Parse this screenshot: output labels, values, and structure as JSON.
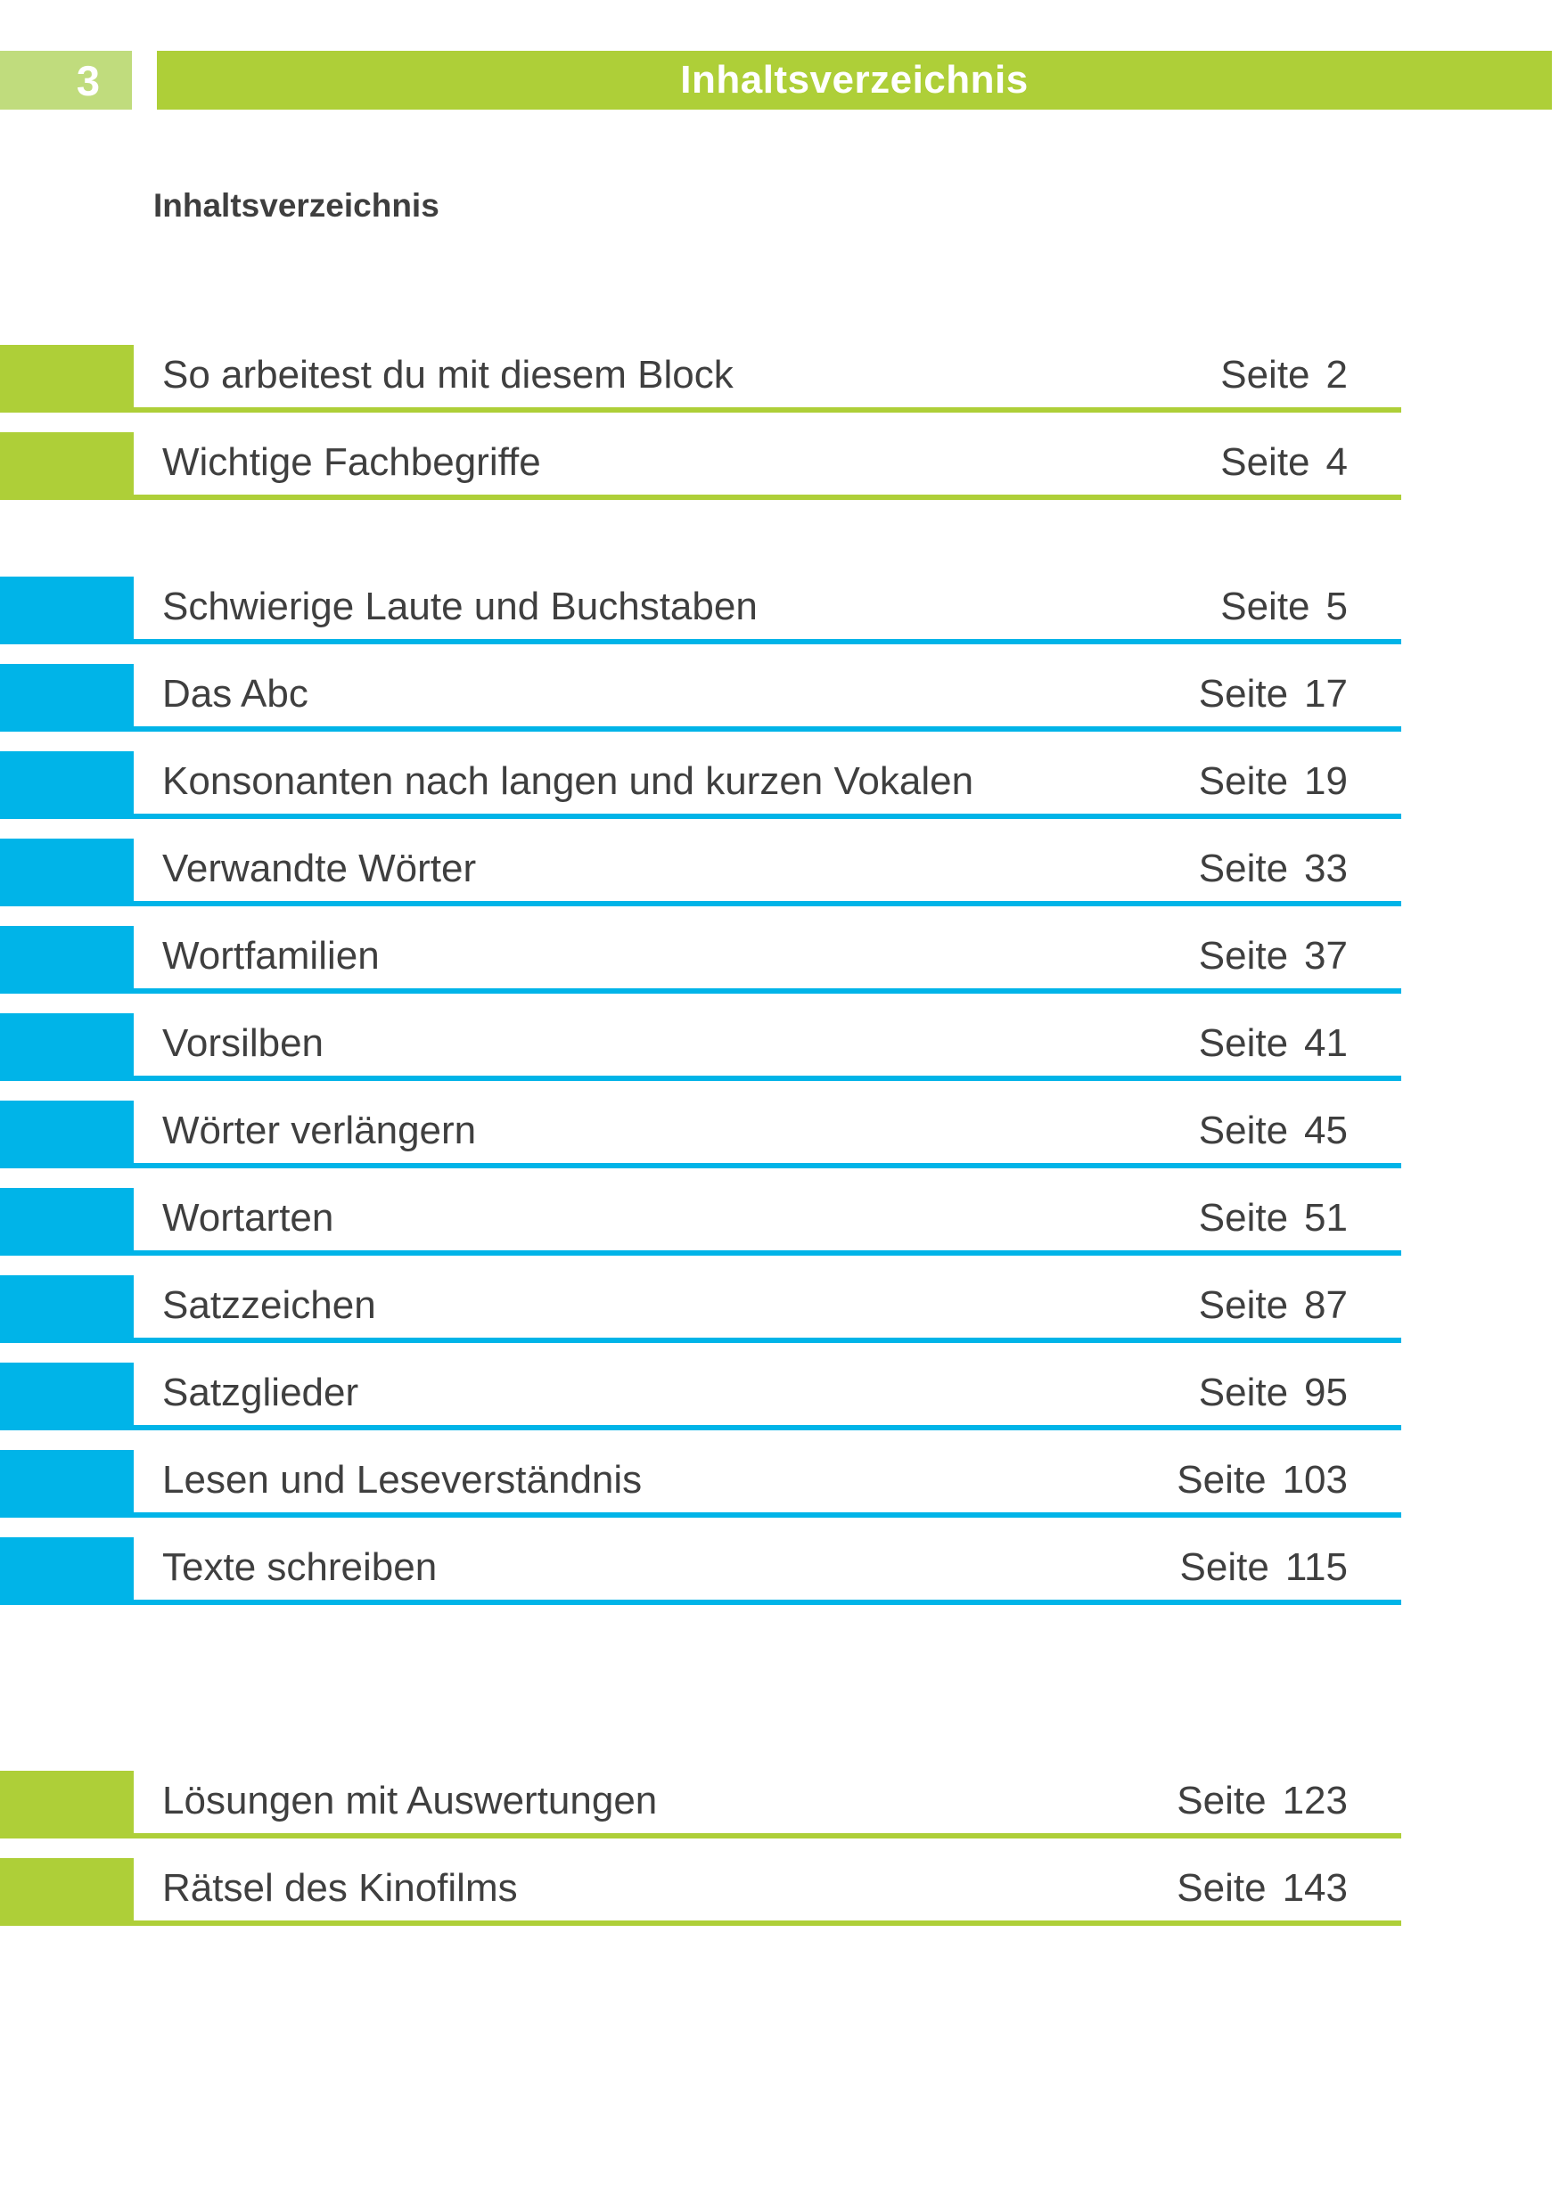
{
  "page_number": "3",
  "header": {
    "title": "Inhaltsverzeichnis"
  },
  "heading": "Inhaltsverzeichnis",
  "page_word": "Seite",
  "colors": {
    "green": "#aecf38",
    "green_light": "#c0dc7d",
    "blue": "#00b4e8",
    "text_dark": "#3f3f3f",
    "header_text": "#ffffff"
  },
  "toc_sections": [
    {
      "accent": "green",
      "entries": [
        {
          "title": "So arbeitest du mit diesem Block",
          "page": "2"
        },
        {
          "title": "Wichtige Fachbegriffe",
          "page": "4"
        }
      ]
    },
    {
      "accent": "blue",
      "entries": [
        {
          "title": "Schwierige Laute und Buchstaben",
          "page": "5"
        },
        {
          "title": "Das Abc",
          "page": "17"
        },
        {
          "title": "Konsonanten nach langen und kurzen Vokalen",
          "page": "19"
        },
        {
          "title": "Verwandte Wörter",
          "page": "33"
        },
        {
          "title": "Wortfamilien",
          "page": "37"
        },
        {
          "title": "Vorsilben",
          "page": "41"
        },
        {
          "title": "Wörter verlängern",
          "page": "45"
        },
        {
          "title": "Wortarten",
          "page": "51"
        },
        {
          "title": "Satzzeichen",
          "page": "87"
        },
        {
          "title": "Satzglieder",
          "page": "95"
        },
        {
          "title": "Lesen und Leseverständnis",
          "page": "103"
        },
        {
          "title": "Texte schreiben",
          "page": "115"
        }
      ]
    },
    {
      "accent": "green",
      "entries": [
        {
          "title": "Lösungen mit Auswertungen",
          "page": "123"
        },
        {
          "title": "Rätsel des Kinofilms",
          "page": "143"
        }
      ]
    }
  ]
}
